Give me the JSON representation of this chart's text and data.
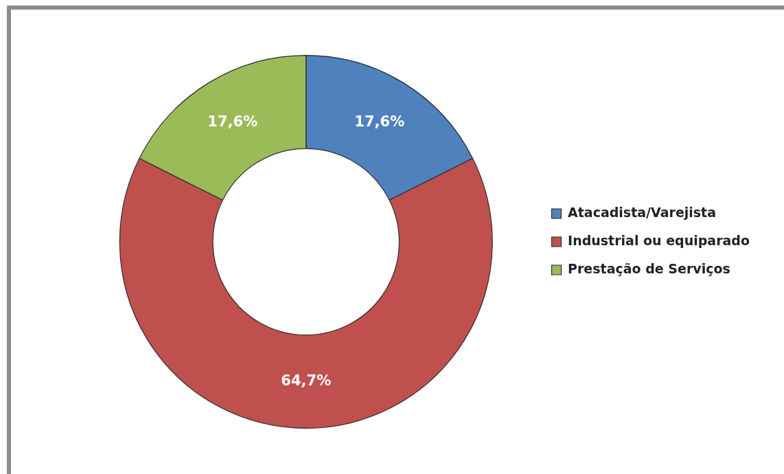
{
  "chart_data": {
    "type": "donut",
    "categories": [
      "Atacadista/Varejista",
      "Industrial ou equiparado",
      "Prestação de Serviços"
    ],
    "values": [
      17.6,
      64.7,
      17.6
    ],
    "colors": [
      "#4f81bd",
      "#c0504d",
      "#9bbb59"
    ],
    "value_labels": [
      "17,6%",
      "64,7%",
      "17,6%"
    ],
    "legend": "right"
  }
}
